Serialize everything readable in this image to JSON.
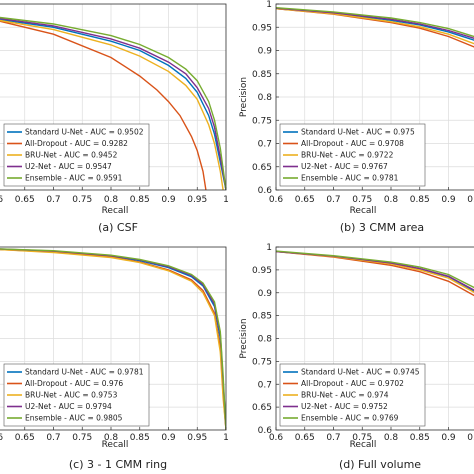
{
  "chart_data": [
    {
      "type": "line",
      "caption": "(a) CSF",
      "xlabel": "Recall",
      "ylabel": "",
      "xlim": [
        0.6,
        1
      ],
      "ylim": [
        0.6,
        1
      ],
      "xticks": [
        "0.6",
        "0.65",
        "0.7",
        "0.75",
        "0.8",
        "0.85",
        "0.9",
        "0.95",
        "1"
      ],
      "yticks": [],
      "grid": true,
      "legend": "bottom-right",
      "series": [
        {
          "name": "Standard U-Net - AUC = 0.9502",
          "color": "#0072bd",
          "x": [
            0.6,
            0.7,
            0.8,
            0.85,
            0.9,
            0.93,
            0.95,
            0.97,
            0.98,
            0.99,
            1.0
          ],
          "y": [
            0.968,
            0.95,
            0.92,
            0.9,
            0.868,
            0.84,
            0.81,
            0.76,
            0.72,
            0.66,
            0.6
          ]
        },
        {
          "name": "All-Dropout - AUC = 0.9282",
          "color": "#d95319",
          "x": [
            0.6,
            0.7,
            0.8,
            0.85,
            0.88,
            0.9,
            0.92,
            0.94,
            0.95,
            0.96,
            0.965
          ],
          "y": [
            0.965,
            0.935,
            0.885,
            0.845,
            0.815,
            0.79,
            0.76,
            0.715,
            0.685,
            0.64,
            0.6
          ]
        },
        {
          "name": "BRU-Net - AUC = 0.9452",
          "color": "#edb120",
          "x": [
            0.6,
            0.7,
            0.8,
            0.85,
            0.9,
            0.93,
            0.95,
            0.97,
            0.98,
            0.99,
            0.995
          ],
          "y": [
            0.966,
            0.945,
            0.912,
            0.888,
            0.855,
            0.825,
            0.795,
            0.74,
            0.7,
            0.64,
            0.6
          ]
        },
        {
          "name": "U2-Net - AUC = 0.9547",
          "color": "#7e2f8e",
          "x": [
            0.6,
            0.7,
            0.8,
            0.85,
            0.9,
            0.93,
            0.95,
            0.97,
            0.98,
            0.99,
            1.0
          ],
          "y": [
            0.97,
            0.953,
            0.925,
            0.905,
            0.875,
            0.85,
            0.82,
            0.775,
            0.735,
            0.67,
            0.6
          ]
        },
        {
          "name": "Ensemble - AUC = 0.9591",
          "color": "#77ac30",
          "x": [
            0.6,
            0.7,
            0.8,
            0.85,
            0.9,
            0.93,
            0.95,
            0.97,
            0.98,
            0.99,
            1.0
          ],
          "y": [
            0.972,
            0.957,
            0.932,
            0.913,
            0.885,
            0.86,
            0.835,
            0.79,
            0.75,
            0.69,
            0.6
          ]
        }
      ]
    },
    {
      "type": "line",
      "caption": "(b) 3 CMM area",
      "xlabel": "Recall",
      "ylabel": "Precision",
      "xlim": [
        0.6,
        1
      ],
      "ylim": [
        0.6,
        1
      ],
      "xticks": [
        "0.6",
        "0.65",
        "0.7",
        "0.75",
        "0.8",
        "0.85",
        "0.9",
        "0.95"
      ],
      "yticks": [
        "0.6",
        "0.65",
        "0.7",
        "0.75",
        "0.8",
        "0.85",
        "0.9",
        "0.95",
        "1"
      ],
      "grid": true,
      "legend": "bottom-right",
      "series": [
        {
          "name": "Standard U-Net - AUC = 0.975",
          "color": "#0072bd",
          "x": [
            0.6,
            0.7,
            0.8,
            0.85,
            0.9,
            0.95,
            0.97,
            1.0
          ],
          "y": [
            0.99,
            0.98,
            0.965,
            0.955,
            0.94,
            0.92,
            0.9,
            0.86
          ]
        },
        {
          "name": "All-Dropout - AUC = 0.9708",
          "color": "#d95319",
          "x": [
            0.6,
            0.7,
            0.8,
            0.85,
            0.9,
            0.95,
            0.97,
            1.0
          ],
          "y": [
            0.99,
            0.978,
            0.96,
            0.948,
            0.93,
            0.905,
            0.88,
            0.84
          ]
        },
        {
          "name": "BRU-Net - AUC = 0.9722",
          "color": "#edb120",
          "x": [
            0.6,
            0.7,
            0.8,
            0.85,
            0.9,
            0.95,
            0.97,
            1.0
          ],
          "y": [
            0.99,
            0.979,
            0.962,
            0.951,
            0.935,
            0.912,
            0.89,
            0.85
          ]
        },
        {
          "name": "U2-Net - AUC = 0.9767",
          "color": "#7e2f8e",
          "x": [
            0.6,
            0.7,
            0.8,
            0.85,
            0.9,
            0.95,
            0.97,
            1.0
          ],
          "y": [
            0.991,
            0.981,
            0.967,
            0.957,
            0.943,
            0.924,
            0.905,
            0.87
          ]
        },
        {
          "name": "Ensemble - AUC = 0.9781",
          "color": "#77ac30",
          "x": [
            0.6,
            0.7,
            0.8,
            0.85,
            0.9,
            0.95,
            0.97,
            1.0
          ],
          "y": [
            0.992,
            0.983,
            0.97,
            0.96,
            0.947,
            0.928,
            0.91,
            0.875
          ]
        }
      ]
    },
    {
      "type": "line",
      "caption": "(c) 3 - 1 CMM ring",
      "xlabel": "Recall",
      "ylabel": "",
      "xlim": [
        0.6,
        1
      ],
      "ylim": [
        0.6,
        1
      ],
      "xticks": [
        "0.6",
        "0.65",
        "0.7",
        "0.75",
        "0.8",
        "0.85",
        "0.9",
        "0.95",
        "1"
      ],
      "yticks": [],
      "grid": true,
      "legend": "bottom-right",
      "series": [
        {
          "name": "Standard U-Net - AUC = 0.9781",
          "color": "#0072bd",
          "x": [
            0.6,
            0.7,
            0.8,
            0.85,
            0.9,
            0.94,
            0.96,
            0.98,
            0.99,
            0.995,
            1.0
          ],
          "y": [
            0.995,
            0.99,
            0.98,
            0.97,
            0.955,
            0.935,
            0.915,
            0.87,
            0.8,
            0.7,
            0.6
          ]
        },
        {
          "name": "All-Dropout - AUC = 0.976",
          "color": "#d95319",
          "x": [
            0.6,
            0.7,
            0.8,
            0.85,
            0.9,
            0.94,
            0.96,
            0.98,
            0.99,
            0.995,
            1.0
          ],
          "y": [
            0.995,
            0.989,
            0.978,
            0.967,
            0.95,
            0.928,
            0.905,
            0.855,
            0.78,
            0.68,
            0.6
          ]
        },
        {
          "name": "BRU-Net - AUC = 0.9753",
          "color": "#edb120",
          "x": [
            0.6,
            0.7,
            0.8,
            0.85,
            0.9,
            0.94,
            0.96,
            0.98,
            0.99,
            0.995,
            1.0
          ],
          "y": [
            0.995,
            0.988,
            0.977,
            0.966,
            0.948,
            0.925,
            0.9,
            0.85,
            0.77,
            0.67,
            0.6
          ]
        },
        {
          "name": "U2-Net - AUC = 0.9794",
          "color": "#7e2f8e",
          "x": [
            0.6,
            0.7,
            0.8,
            0.85,
            0.9,
            0.94,
            0.96,
            0.98,
            0.99,
            0.995,
            1.0
          ],
          "y": [
            0.996,
            0.991,
            0.981,
            0.972,
            0.957,
            0.938,
            0.918,
            0.875,
            0.81,
            0.71,
            0.6
          ]
        },
        {
          "name": "Ensemble - AUC = 0.9805",
          "color": "#77ac30",
          "x": [
            0.6,
            0.7,
            0.8,
            0.85,
            0.9,
            0.94,
            0.96,
            0.98,
            0.99,
            0.995,
            1.0
          ],
          "y": [
            0.996,
            0.992,
            0.982,
            0.973,
            0.959,
            0.94,
            0.921,
            0.88,
            0.815,
            0.72,
            0.6
          ]
        }
      ]
    },
    {
      "type": "line",
      "caption": "(d) Full volume",
      "xlabel": "Recall",
      "ylabel": "Precision",
      "xlim": [
        0.6,
        1
      ],
      "ylim": [
        0.6,
        1
      ],
      "xticks": [
        "0.6",
        "0.65",
        "0.7",
        "0.75",
        "0.8",
        "0.85",
        "0.9",
        "0.95"
      ],
      "yticks": [
        "0.6",
        "0.65",
        "0.7",
        "0.75",
        "0.8",
        "0.85",
        "0.9",
        "0.95",
        "1"
      ],
      "grid": true,
      "legend": "bottom-right",
      "series": [
        {
          "name": "Standard U-Net - AUC = 0.9745",
          "color": "#0072bd",
          "x": [
            0.6,
            0.7,
            0.8,
            0.85,
            0.9,
            0.95,
            0.97,
            1.0
          ],
          "y": [
            0.99,
            0.98,
            0.965,
            0.952,
            0.935,
            0.9,
            0.875,
            0.84
          ]
        },
        {
          "name": "All-Dropout - AUC = 0.9702",
          "color": "#d95319",
          "x": [
            0.6,
            0.7,
            0.8,
            0.85,
            0.9,
            0.95,
            0.97,
            1.0
          ],
          "y": [
            0.99,
            0.978,
            0.96,
            0.946,
            0.925,
            0.89,
            0.86,
            0.82
          ]
        },
        {
          "name": "BRU-Net - AUC = 0.974",
          "color": "#edb120",
          "x": [
            0.6,
            0.7,
            0.8,
            0.85,
            0.9,
            0.95,
            0.97,
            1.0
          ],
          "y": [
            0.99,
            0.979,
            0.963,
            0.95,
            0.932,
            0.897,
            0.87,
            0.835
          ]
        },
        {
          "name": "U2-Net - AUC = 0.9752",
          "color": "#7e2f8e",
          "x": [
            0.6,
            0.7,
            0.8,
            0.85,
            0.9,
            0.95,
            0.97,
            1.0
          ],
          "y": [
            0.99,
            0.98,
            0.965,
            0.953,
            0.936,
            0.902,
            0.877,
            0.845
          ]
        },
        {
          "name": "Ensemble - AUC = 0.9769",
          "color": "#77ac30",
          "x": [
            0.6,
            0.7,
            0.8,
            0.85,
            0.9,
            0.95,
            0.97,
            1.0
          ],
          "y": [
            0.991,
            0.981,
            0.967,
            0.956,
            0.94,
            0.908,
            0.885,
            0.855
          ]
        }
      ]
    }
  ]
}
